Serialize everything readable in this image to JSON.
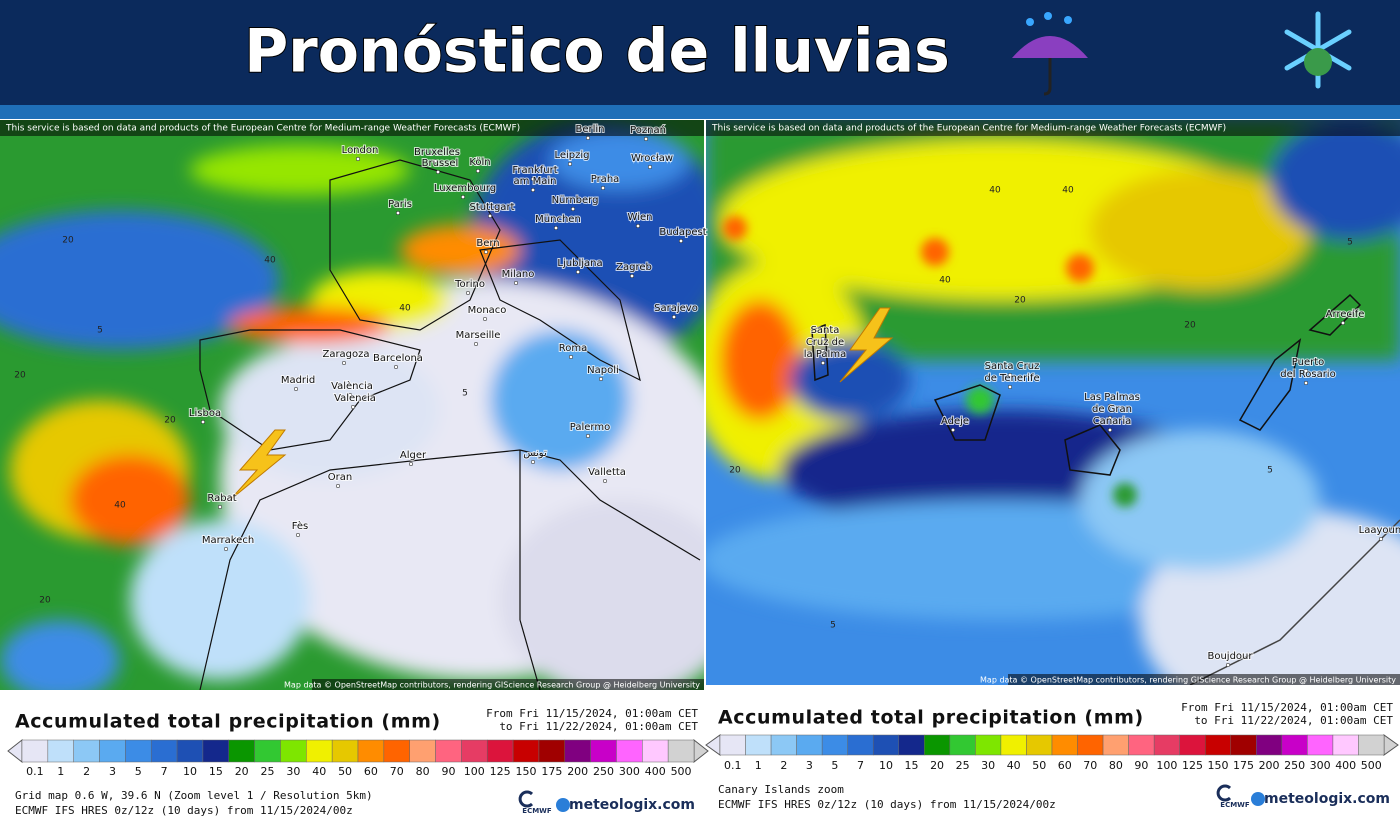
{
  "header": {
    "title": "Pronóstico de lluvias"
  },
  "panels": [
    {
      "notice": "This service is based on data and products of the European Centre for Medium-range Weather Forecasts (ECMWF)",
      "labels": [
        "Berlin",
        "Poznań",
        "London",
        "Bruxelles",
        "Brussel",
        "Köln",
        "Leipzig",
        "Wrocław",
        "Frankfurt",
        "am Main",
        "Praha",
        "Luxembourg",
        "Nürnberg",
        "Paris",
        "Stuttgart",
        "München",
        "Wien",
        "Budapest",
        "Bern",
        "Ljubljana",
        "Zagreb",
        "Milano",
        "Torino",
        "Sarajevo",
        "Monaco",
        "Marseille",
        "Zaragoza",
        "Barcelona",
        "Roma",
        "Madrid",
        "València",
        "Valencia",
        "Napoli",
        "Lisboa",
        "Palermo",
        "Alger",
        "تونس",
        "Valletta",
        "Oran",
        "Rabat",
        "Fès",
        "Marrakech"
      ],
      "contours": [
        "20",
        "20",
        "40",
        "5",
        "40",
        "20",
        "5",
        "40",
        "20"
      ],
      "attribution": "Map data © OpenStreetMap contributors, rendering GIScience Research Group @ Heidelberg University",
      "legend": {
        "title": "Accumulated total precipitation (mm)",
        "from": "From Fri 11/15/2024, 01:00am CET",
        "to": "to Fri 11/22/2024, 01:00am CET",
        "scale": [
          "0.1",
          "1",
          "2",
          "3",
          "5",
          "7",
          "10",
          "15",
          "20",
          "25",
          "30",
          "40",
          "50",
          "60",
          "70",
          "80",
          "90",
          "100",
          "125",
          "150",
          "175",
          "200",
          "250",
          "300",
          "400",
          "500"
        ],
        "info": [
          "Grid map 0.6 W, 39.6 N (Zoom level 1 / Resolution 5km)",
          "ECMWF IFS HRES 0z/12z (10 days) from 11/15/2024/00z"
        ],
        "logos": [
          "ECMWF",
          "meteologix.com"
        ]
      }
    },
    {
      "notice": "This service is based on data and products of the European Centre for Medium-range Weather Forecasts (ECMWF)",
      "labels": [
        "Santa",
        "Cruz de",
        "la Palma",
        "Santa Cruz",
        "de Tenerife",
        "Adeje",
        "Las Palmas",
        "de Gran",
        "Canaria",
        "Puerto",
        "del Rosario",
        "Arrecife",
        "Boujdour",
        "Laayoune"
      ],
      "contours": [
        "40",
        "40",
        "20",
        "20",
        "5",
        "5",
        "5",
        "40",
        "20"
      ],
      "attribution": "Map data © OpenStreetMap contributors, rendering GIScience Research Group @ Heidelberg University",
      "legend": {
        "title": "Accumulated total precipitation (mm)",
        "from": "From Fri 11/15/2024, 01:00am CET",
        "to": "to Fri 11/22/2024, 01:00am CET",
        "scale": [
          "0.1",
          "1",
          "2",
          "3",
          "5",
          "7",
          "10",
          "15",
          "20",
          "25",
          "30",
          "40",
          "50",
          "60",
          "70",
          "80",
          "90",
          "100",
          "125",
          "150",
          "175",
          "200",
          "250",
          "300",
          "400",
          "500"
        ],
        "info": [
          "Canary Islands zoom",
          "ECMWF IFS HRES 0z/12z (10 days) from 11/15/2024/00z"
        ],
        "logos": [
          "ECMWF",
          "meteologix.com"
        ]
      }
    }
  ]
}
